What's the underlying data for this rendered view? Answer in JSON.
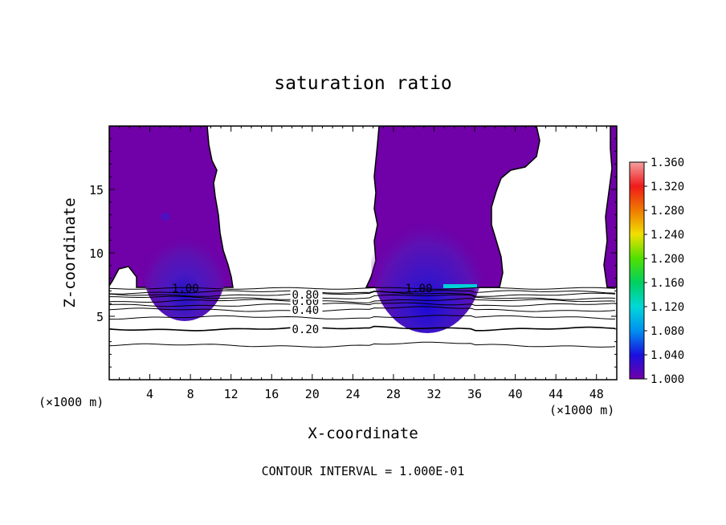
{
  "chart_data": {
    "type": "heatmap",
    "title": "saturation ratio",
    "xlabel": "X-coordinate",
    "ylabel": "Z-coordinate",
    "x_unit": "(×1000 m)",
    "y_unit": "(×1000 m)",
    "xlim": [
      0,
      50
    ],
    "ylim": [
      0,
      20
    ],
    "x_ticks": [
      4,
      8,
      12,
      16,
      20,
      24,
      28,
      32,
      36,
      40,
      44,
      48
    ],
    "y_ticks": [
      5,
      10,
      15
    ],
    "x_tick_labels": [
      "4",
      "8",
      "12",
      "16",
      "20",
      "24",
      "28",
      "32",
      "36",
      "40",
      "44",
      "48"
    ],
    "y_tick_labels": [
      "5",
      "10",
      "15"
    ],
    "footnote": "CONTOUR INTERVAL = 1.000E-01",
    "colorbar": {
      "min": 1.0,
      "max": 1.36,
      "labels": [
        "1.360",
        "1.320",
        "1.280",
        "1.240",
        "1.200",
        "1.160",
        "1.120",
        "1.080",
        "1.040",
        "1.000"
      ],
      "colors": [
        "#f4a0a0",
        "#f01a1a",
        "#f07a00",
        "#f0e000",
        "#50e000",
        "#00d060",
        "#00d8d8",
        "#0090f0",
        "#1a10e0",
        "#7000a8"
      ]
    },
    "contours": [
      {
        "level": 0.2,
        "label": "0.20",
        "z": 4.0
      },
      {
        "level": 0.3,
        "label": "",
        "z": 4.9
      },
      {
        "level": 0.4,
        "label": "0.40",
        "z": 5.5
      },
      {
        "level": 0.5,
        "label": "",
        "z": 5.9
      },
      {
        "level": 0.6,
        "label": "0.60",
        "z": 6.2
      },
      {
        "level": 0.7,
        "label": "",
        "z": 6.45
      },
      {
        "level": 0.8,
        "label": "0.80",
        "z": 6.7
      },
      {
        "level": 0.9,
        "label": "",
        "z": 6.9
      },
      {
        "level": 0.1,
        "label": "",
        "z": 2.7
      }
    ],
    "saturated_labels": [
      {
        "label": "1.00",
        "x": 7.5,
        "z": 7.2
      },
      {
        "label": "1.00",
        "x": 30.5,
        "z": 7.2
      }
    ]
  }
}
